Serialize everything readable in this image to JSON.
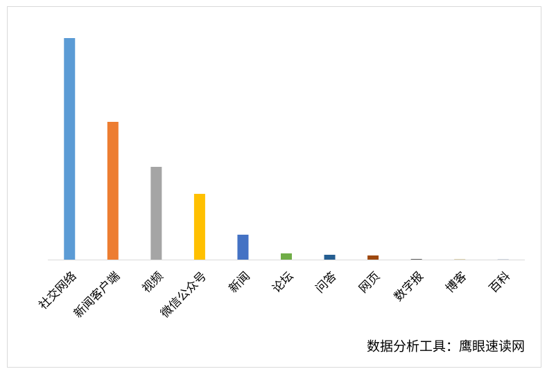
{
  "chart_data": {
    "type": "bar",
    "categories": [
      "社交网络",
      "新闻客户端",
      "视频",
      "微信公众号",
      "新闻",
      "论坛",
      "问答",
      "网页",
      "数字报",
      "博客",
      "百科"
    ],
    "values": [
      320,
      199,
      134,
      95,
      36,
      9,
      7,
      6,
      1,
      0.3,
      0.2
    ],
    "colors": [
      "#5b9bd5",
      "#ed7d31",
      "#a5a5a5",
      "#ffc000",
      "#4472c4",
      "#70ad47",
      "#255e91",
      "#9e480e",
      "#636363",
      "#997300",
      "#264478"
    ],
    "ylim": [
      0,
      330
    ],
    "source": "数据分析工具：鹰眼速读网"
  }
}
